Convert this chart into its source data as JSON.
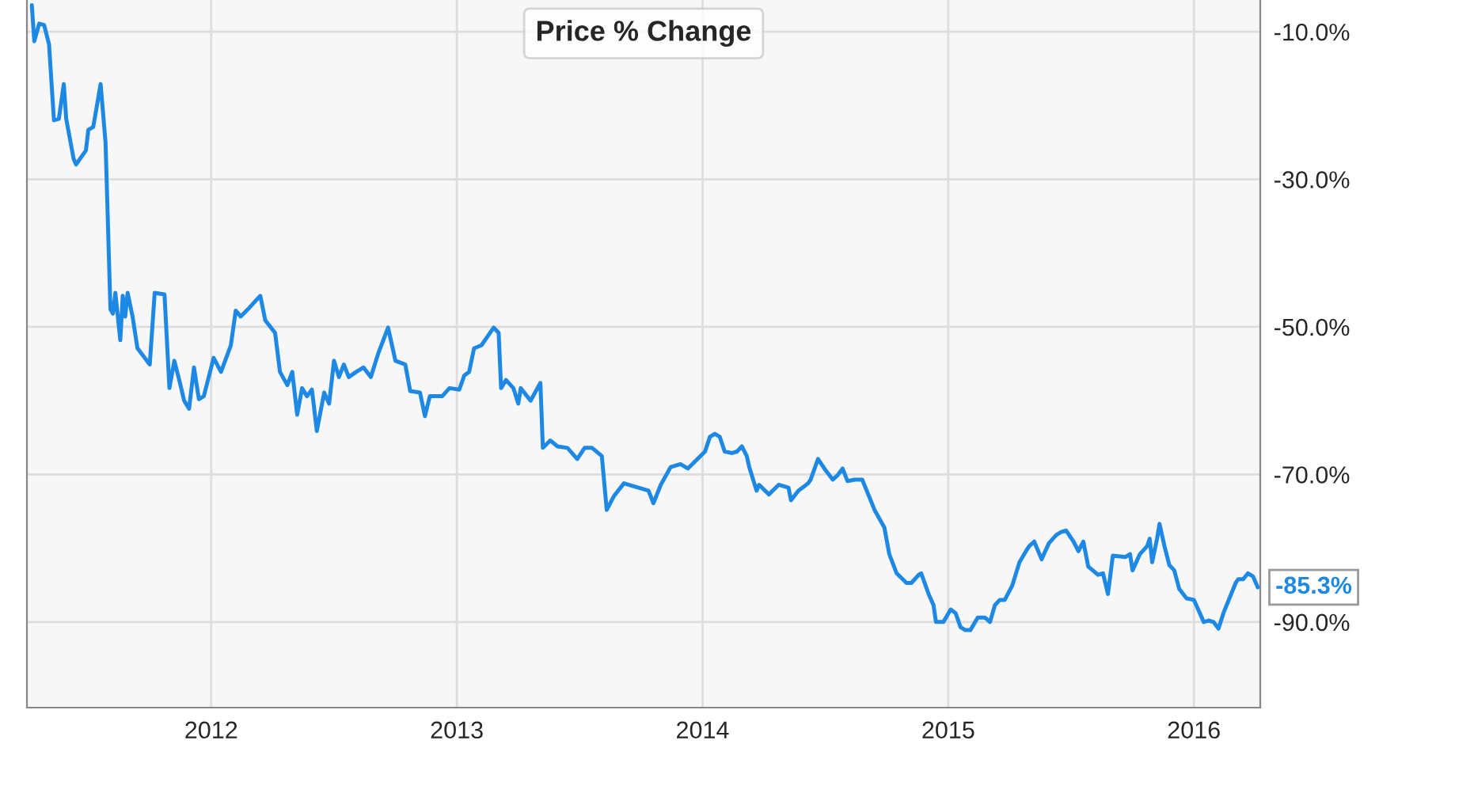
{
  "chart_data": {
    "type": "line",
    "xlim": [
      2011.25,
      2016.27
    ],
    "ylim": [
      -101.6,
      -5.7
    ],
    "xticks": [
      2012,
      2013,
      2014,
      2015,
      2016
    ],
    "yticks": [
      {
        "value": -10,
        "label": "-10.0%"
      },
      {
        "value": -30,
        "label": "-30.0%"
      },
      {
        "value": -50,
        "label": "-50.0%"
      },
      {
        "value": -70,
        "label": "-70.0%"
      },
      {
        "value": -90,
        "label": "-90.0%"
      }
    ],
    "grid": true,
    "legend": "top",
    "marker": "none",
    "line_style": "solid",
    "annotations": [
      {
        "text": "-85.3%",
        "x": 2016.26,
        "y": -85.3
      }
    ],
    "series": [
      {
        "name": "Price % Change",
        "color": "#1e88e5",
        "x": [
          2011.27,
          2011.28,
          2011.3,
          2011.32,
          2011.34,
          2011.36,
          2011.38,
          2011.4,
          2011.41,
          2011.44,
          2011.45,
          2011.49,
          2011.5,
          2011.52,
          2011.55,
          2011.57,
          2011.59,
          2011.6,
          2011.61,
          2011.63,
          2011.64,
          2011.65,
          2011.66,
          2011.68,
          2011.7,
          2011.75,
          2011.77,
          2011.81,
          2011.83,
          2011.85,
          2011.87,
          2011.89,
          2011.91,
          2011.93,
          2011.95,
          2011.97,
          2012.0,
          2012.01,
          2012.04,
          2012.08,
          2012.1,
          2012.12,
          2012.15,
          2012.18,
          2012.2,
          2012.22,
          2012.26,
          2012.28,
          2012.31,
          2012.33,
          2012.35,
          2012.37,
          2012.39,
          2012.41,
          2012.43,
          2012.46,
          2012.48,
          2012.5,
          2012.52,
          2012.54,
          2012.56,
          2012.59,
          2012.62,
          2012.65,
          2012.68,
          2012.72,
          2012.75,
          2012.79,
          2012.81,
          2012.85,
          2012.87,
          2012.89,
          2012.94,
          2012.97,
          2013.01,
          2013.03,
          2013.05,
          2013.07,
          2013.1,
          2013.15,
          2013.17,
          2013.18,
          2013.2,
          2013.23,
          2013.25,
          2013.26,
          2013.3,
          2013.34,
          2013.35,
          2013.38,
          2013.41,
          2013.45,
          2013.49,
          2013.52,
          2013.55,
          2013.59,
          2013.61,
          2013.64,
          2013.68,
          2013.72,
          2013.78,
          2013.8,
          2013.83,
          2013.87,
          2013.91,
          2013.94,
          2014.01,
          2014.03,
          2014.05,
          2014.07,
          2014.09,
          2014.12,
          2014.14,
          2014.16,
          2014.18,
          2014.19,
          2014.22,
          2014.23,
          2014.27,
          2014.31,
          2014.35,
          2014.36,
          2014.39,
          2014.43,
          2014.44,
          2014.47,
          2014.5,
          2014.53,
          2014.55,
          2014.57,
          2014.59,
          2014.62,
          2014.65,
          2014.7,
          2014.74,
          2014.76,
          2014.79,
          2014.83,
          2014.85,
          2014.88,
          2014.89,
          2014.92,
          2014.94,
          2014.95,
          2014.98,
          2015.01,
          2015.03,
          2015.05,
          2015.07,
          2015.09,
          2015.12,
          2015.15,
          2015.17,
          2015.19,
          2015.21,
          2015.23,
          2015.26,
          2015.29,
          2015.32,
          2015.33,
          2015.35,
          2015.38,
          2015.41,
          2015.44,
          2015.46,
          2015.48,
          2015.51,
          2015.53,
          2015.55,
          2015.57,
          2015.61,
          2015.63,
          2015.65,
          2015.67,
          2015.72,
          2015.74,
          2015.75,
          2015.78,
          2015.81,
          2015.82,
          2015.83,
          2015.85,
          2015.86,
          2015.88,
          2015.9,
          2015.92,
          2015.94,
          2015.97,
          2016.0,
          2016.04,
          2016.06,
          2016.08,
          2016.1,
          2016.12,
          2016.17,
          2016.18,
          2016.2,
          2016.22,
          2016.24,
          2016.26
        ],
        "values": [
          -6.4,
          -11.3,
          -8.9,
          -9.1,
          -11.7,
          -22.0,
          -21.8,
          -17.1,
          -21.8,
          -27.2,
          -28.0,
          -26.1,
          -23.3,
          -22.9,
          -17.1,
          -25.0,
          -47.6,
          -48.2,
          -45.4,
          -51.8,
          -45.8,
          -48.6,
          -45.4,
          -48.6,
          -52.9,
          -55.1,
          -45.4,
          -45.6,
          -58.3,
          -54.6,
          -57.2,
          -60.0,
          -61.1,
          -55.5,
          -59.8,
          -59.4,
          -55.5,
          -54.2,
          -56.1,
          -52.5,
          -47.8,
          -48.6,
          -47.6,
          -46.5,
          -45.8,
          -49.1,
          -50.8,
          -56.1,
          -57.9,
          -56.1,
          -61.9,
          -58.3,
          -59.4,
          -58.5,
          -64.1,
          -58.9,
          -60.4,
          -54.6,
          -56.8,
          -55.1,
          -56.8,
          -56.1,
          -55.5,
          -56.8,
          -53.6,
          -50.1,
          -54.6,
          -55.1,
          -58.7,
          -58.9,
          -62.1,
          -59.4,
          -59.4,
          -58.3,
          -58.5,
          -56.6,
          -56.1,
          -52.9,
          -52.5,
          -50.1,
          -50.8,
          -58.3,
          -57.2,
          -58.3,
          -60.4,
          -58.3,
          -60.0,
          -57.6,
          -66.4,
          -65.4,
          -66.2,
          -66.4,
          -67.9,
          -66.4,
          -66.4,
          -67.5,
          -74.8,
          -72.9,
          -71.2,
          -71.6,
          -72.2,
          -73.9,
          -71.4,
          -69.0,
          -68.6,
          -69.2,
          -66.9,
          -64.9,
          -64.5,
          -64.9,
          -66.9,
          -67.1,
          -66.9,
          -66.2,
          -67.5,
          -69.0,
          -72.2,
          -71.4,
          -72.7,
          -71.4,
          -71.8,
          -73.5,
          -72.2,
          -71.2,
          -70.7,
          -67.9,
          -69.4,
          -70.7,
          -70.1,
          -69.2,
          -70.9,
          -70.7,
          -70.7,
          -74.8,
          -77.2,
          -80.8,
          -83.4,
          -84.7,
          -84.7,
          -83.6,
          -83.4,
          -86.2,
          -87.7,
          -90.0,
          -90.0,
          -88.3,
          -88.8,
          -90.7,
          -91.1,
          -91.1,
          -89.4,
          -89.4,
          -90.0,
          -87.7,
          -87.0,
          -87.0,
          -85.1,
          -81.9,
          -80.2,
          -79.7,
          -79.1,
          -81.5,
          -79.3,
          -78.2,
          -77.8,
          -77.6,
          -79.1,
          -80.4,
          -79.1,
          -82.5,
          -83.6,
          -83.4,
          -86.2,
          -81.0,
          -81.2,
          -80.8,
          -83.0,
          -80.8,
          -79.7,
          -78.7,
          -81.9,
          -78.7,
          -76.7,
          -79.7,
          -82.3,
          -83.0,
          -85.5,
          -86.8,
          -87.0,
          -90.0,
          -89.8,
          -90.0,
          -90.9,
          -88.8,
          -84.7,
          -84.2,
          -84.2,
          -83.4,
          -83.8,
          -85.3
        ]
      }
    ]
  }
}
